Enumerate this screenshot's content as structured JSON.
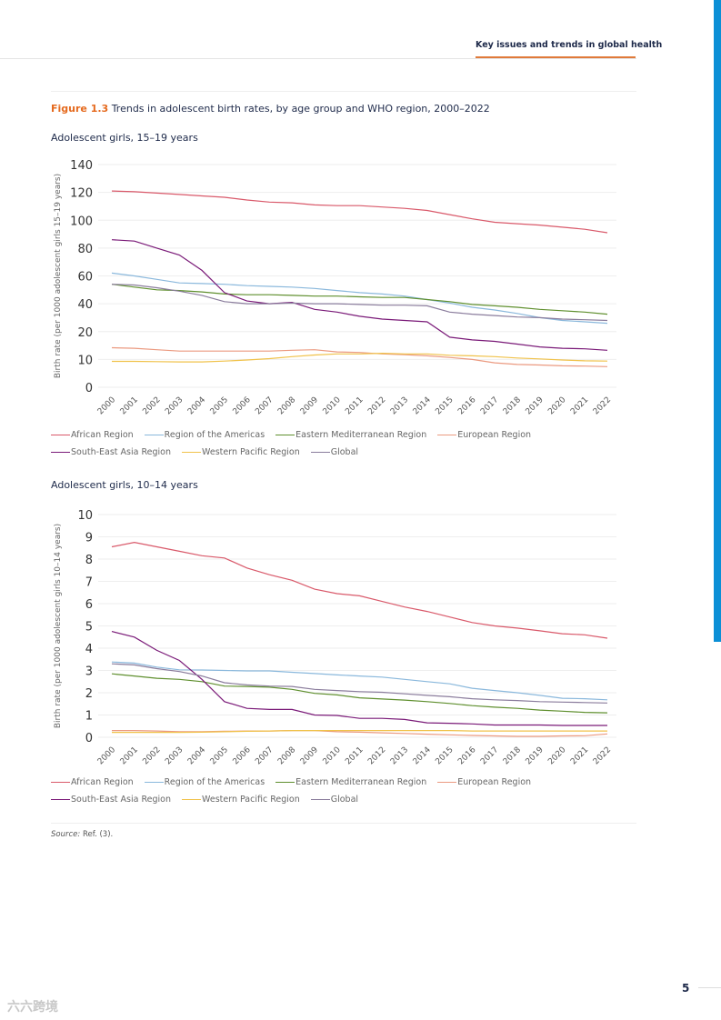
{
  "header": {
    "running_head": "Key issues and trends in global health"
  },
  "figure": {
    "label": "Figure 1.3",
    "title": "Trends in adolescent birth rates, by age group and WHO region, 2000–2022"
  },
  "series_meta": [
    {
      "name": "African Region",
      "color": "#d9596a"
    },
    {
      "name": "Region of the Americas",
      "color": "#8ab8dc"
    },
    {
      "name": "Eastern Mediterranean Region",
      "color": "#5f8f2e"
    },
    {
      "name": "European Region",
      "color": "#eb9a80"
    },
    {
      "name": "South-East Asia Region",
      "color": "#7a1a78"
    },
    {
      "name": "Western Pacific Region",
      "color": "#f0c24a"
    },
    {
      "name": "Global",
      "color": "#8a7c9c"
    }
  ],
  "chart_data": [
    {
      "type": "line",
      "title": "Adolescent girls, 15–19 years",
      "xlabel": "",
      "ylabel": "Birth rate (per 1000 adolescent girls 15–19 years)",
      "yticks": [
        0,
        10,
        20,
        40,
        60,
        80,
        100,
        120,
        140
      ],
      "ylim": [
        0,
        140
      ],
      "grid": true,
      "legend": "bottom",
      "x": [
        "2000",
        "2001",
        "2002",
        "2003",
        "2004",
        "2005",
        "2006",
        "2007",
        "2008",
        "2009",
        "2010",
        "2011",
        "2012",
        "2013",
        "2014",
        "2015",
        "2016",
        "2017",
        "2018",
        "2019",
        "2020",
        "2021",
        "2022"
      ],
      "series": [
        {
          "name": "African Region",
          "values": [
            121,
            120.5,
            119.5,
            118.5,
            117.5,
            116.5,
            114.5,
            113,
            112.5,
            111,
            110.5,
            110.5,
            109.5,
            108.5,
            107,
            104,
            101,
            98.5,
            97.5,
            96.5,
            95,
            93.5,
            91
          ]
        },
        {
          "name": "Region of the Americas",
          "values": [
            62,
            60,
            57.5,
            55,
            54.5,
            54,
            53,
            52.5,
            52,
            51,
            49.5,
            48,
            47,
            45.5,
            43,
            40.5,
            37.5,
            35.5,
            33,
            30,
            28,
            27,
            26
          ]
        },
        {
          "name": "Eastern Mediterranean Region",
          "values": [
            54,
            52,
            50,
            49.5,
            48.5,
            47,
            46.5,
            46.5,
            46,
            45.5,
            45.5,
            45,
            44.5,
            44.5,
            43,
            41.5,
            39.5,
            38.5,
            37.5,
            36,
            35,
            34,
            32.5
          ]
        },
        {
          "name": "European Region",
          "values": [
            14.2,
            14,
            13.5,
            13,
            13,
            13,
            13,
            13,
            13.3,
            13.5,
            12.7,
            12.5,
            12,
            11.7,
            11.3,
            10.7,
            10,
            8.8,
            8.2,
            8,
            7.7,
            7.6,
            7.4
          ]
        },
        {
          "name": "South-East Asia Region",
          "values": [
            86,
            85,
            80,
            75,
            64,
            48,
            42,
            40,
            41,
            36,
            34,
            31,
            29,
            28,
            27,
            18,
            17,
            16.5,
            15.5,
            14.5,
            14,
            13.8,
            13.3
          ]
        },
        {
          "name": "Western Pacific Region",
          "values": [
            9.3,
            9.3,
            9.2,
            9.1,
            9.1,
            9.4,
            9.8,
            10.3,
            11,
            11.6,
            12,
            12,
            12.2,
            12,
            12,
            11.5,
            11.3,
            11,
            10.5,
            10.2,
            9.8,
            9.5,
            9.4
          ]
        },
        {
          "name": "Global",
          "values": [
            54,
            53.5,
            51.5,
            49,
            46,
            41.5,
            40,
            40,
            40.5,
            40,
            40,
            39.5,
            39,
            39,
            38.5,
            34,
            32.5,
            31.5,
            30.5,
            30,
            29,
            28.5,
            28
          ]
        }
      ]
    },
    {
      "type": "line",
      "title": "Adolescent girls, 10–14 years",
      "xlabel": "",
      "ylabel": "Birth rate (per 1000 adolescent girls 10–14 years)",
      "yticks": [
        0,
        1,
        2,
        3,
        4,
        5,
        6,
        7,
        8,
        9,
        10
      ],
      "ylim": [
        0,
        10
      ],
      "grid": true,
      "legend": "bottom",
      "x": [
        "2000",
        "2001",
        "2002",
        "2003",
        "2004",
        "2005",
        "2006",
        "2007",
        "2008",
        "2009",
        "2010",
        "2011",
        "2012",
        "2013",
        "2014",
        "2015",
        "2016",
        "2017",
        "2018",
        "2019",
        "2020",
        "2021",
        "2022"
      ],
      "series": [
        {
          "name": "African Region",
          "values": [
            8.55,
            8.75,
            8.55,
            8.35,
            8.15,
            8.05,
            7.6,
            7.3,
            7.05,
            6.65,
            6.45,
            6.35,
            6.1,
            5.85,
            5.65,
            5.4,
            5.15,
            5.0,
            4.9,
            4.78,
            4.65,
            4.6,
            4.45
          ]
        },
        {
          "name": "Region of the Americas",
          "values": [
            3.38,
            3.33,
            3.15,
            3.03,
            3.02,
            3.0,
            2.98,
            2.98,
            2.92,
            2.86,
            2.8,
            2.75,
            2.7,
            2.6,
            2.5,
            2.4,
            2.2,
            2.1,
            2.0,
            1.88,
            1.75,
            1.73,
            1.68
          ]
        },
        {
          "name": "Eastern Mediterranean Region",
          "values": [
            2.85,
            2.75,
            2.65,
            2.6,
            2.5,
            2.3,
            2.28,
            2.25,
            2.15,
            1.97,
            1.9,
            1.77,
            1.72,
            1.67,
            1.6,
            1.52,
            1.42,
            1.35,
            1.3,
            1.22,
            1.17,
            1.12,
            1.1
          ]
        },
        {
          "name": "European Region",
          "values": [
            0.3,
            0.3,
            0.28,
            0.25,
            0.25,
            0.27,
            0.28,
            0.28,
            0.3,
            0.3,
            0.25,
            0.23,
            0.2,
            0.17,
            0.14,
            0.11,
            0.08,
            0.06,
            0.04,
            0.04,
            0.06,
            0.07,
            0.15
          ]
        },
        {
          "name": "South-East Asia Region",
          "values": [
            4.75,
            4.5,
            3.9,
            3.45,
            2.6,
            1.6,
            1.3,
            1.25,
            1.25,
            1.0,
            0.98,
            0.85,
            0.85,
            0.8,
            0.65,
            0.63,
            0.6,
            0.55,
            0.55,
            0.55,
            0.53,
            0.53,
            0.53
          ]
        },
        {
          "name": "Western Pacific Region",
          "values": [
            0.22,
            0.22,
            0.22,
            0.22,
            0.23,
            0.25,
            0.27,
            0.28,
            0.3,
            0.3,
            0.3,
            0.3,
            0.3,
            0.3,
            0.3,
            0.3,
            0.28,
            0.28,
            0.28,
            0.28,
            0.28,
            0.28,
            0.28
          ]
        },
        {
          "name": "Global",
          "values": [
            3.3,
            3.25,
            3.08,
            2.95,
            2.75,
            2.45,
            2.35,
            2.3,
            2.28,
            2.15,
            2.1,
            2.05,
            2.02,
            1.95,
            1.88,
            1.82,
            1.73,
            1.68,
            1.65,
            1.6,
            1.58,
            1.56,
            1.54
          ]
        }
      ]
    }
  ],
  "source": {
    "label": "Source:",
    "text": "Ref. (3)."
  },
  "page_number": "5",
  "watermark": "六六跨境"
}
